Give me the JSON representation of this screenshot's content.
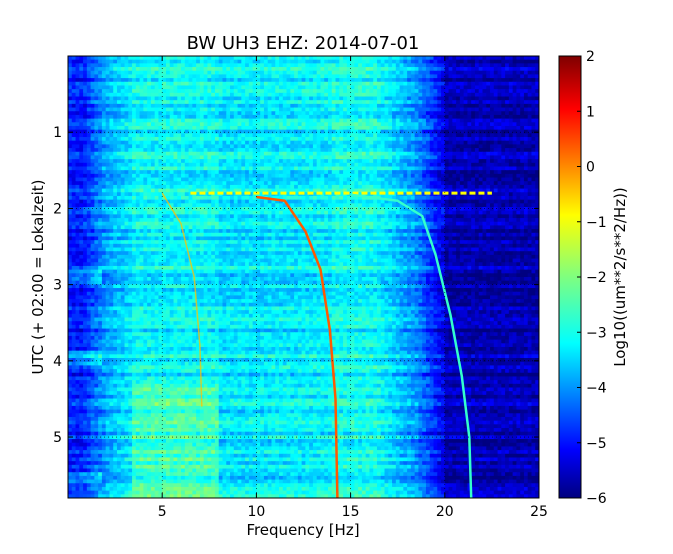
{
  "chart_data": {
    "type": "heatmap",
    "title": "BW UH3 EHZ: 2014-07-01",
    "xlabel": "Frequency [Hz]",
    "ylabel": "UTC (+ 02:00 = Lokalzeit)",
    "xlim": [
      0,
      25
    ],
    "ylim": [
      5.8,
      0
    ],
    "x_ticks": [
      "5",
      "10",
      "15",
      "20",
      "25"
    ],
    "y_ticks": [
      "1",
      "2",
      "3",
      "4",
      "5"
    ],
    "grid": true,
    "colorbar": {
      "label": "Log10((um**2/s**2/Hz))",
      "range": [
        -6,
        2
      ],
      "ticks": [
        "2",
        "1",
        "0",
        "−1",
        "−2",
        "−3",
        "−4",
        "−5",
        "−6"
      ],
      "colormap": "jet"
    },
    "sweep_lines": [
      {
        "name": "",
        "points": [
          [
            5.0,
            1.8
          ],
          [
            6.0,
            2.2
          ],
          [
            6.7,
            2.9
          ],
          [
            7.0,
            3.8
          ],
          [
            7.1,
            4.6
          ]
        ],
        "level": -0.5,
        "faint": true
      },
      {
        "name": "",
        "points": [
          [
            10.0,
            1.85
          ],
          [
            11.5,
            1.9
          ],
          [
            12.6,
            2.3
          ],
          [
            13.4,
            2.8
          ],
          [
            13.9,
            3.6
          ],
          [
            14.2,
            4.5
          ],
          [
            14.3,
            5.8
          ]
        ],
        "level": 0.3
      },
      {
        "name": "",
        "points": [
          [
            15.0,
            1.82
          ],
          [
            17.5,
            1.9
          ],
          [
            18.8,
            2.1
          ],
          [
            19.5,
            2.6
          ],
          [
            20.3,
            3.4
          ],
          [
            20.9,
            4.2
          ],
          [
            21.3,
            5.0
          ],
          [
            21.4,
            5.8
          ]
        ],
        "level": -2.6
      }
    ],
    "horizontal_band": {
      "y": 1.8,
      "x_range": [
        6.5,
        22.5
      ],
      "level": -1.0
    }
  }
}
